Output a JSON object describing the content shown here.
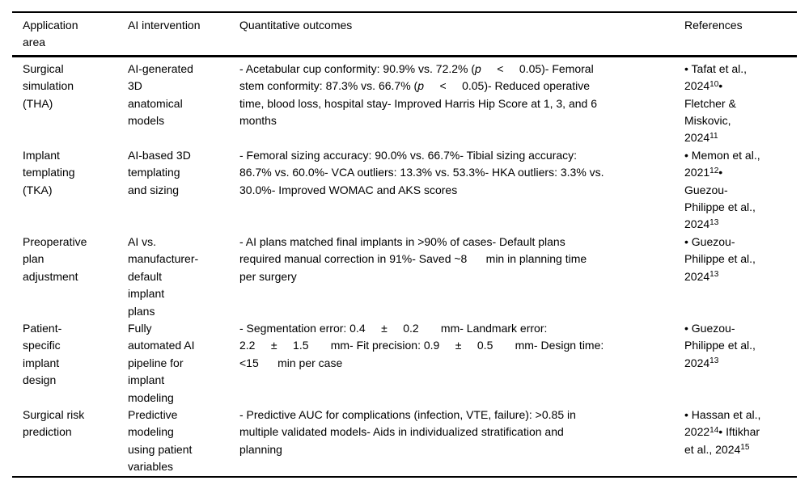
{
  "colors": {
    "text": "#000000",
    "rule": "#000000",
    "background": "#ffffff"
  },
  "table": {
    "headers": {
      "application_area": "Application\narea",
      "ai_intervention": "AI intervention",
      "quantitative_outcomes": "Quantitative outcomes",
      "references": "References"
    },
    "rows": [
      {
        "area": "Surgical\nsimulation\n(THA)",
        "intervention": "AI-generated\n3D\nanatomical\nmodels",
        "outcomes": [
          {
            "t": "- Acetabular cup conformity: 90.9% vs. 72.2% ("
          },
          {
            "t": "p",
            "s": "i"
          },
          {
            "t": "     <     0.05)- Femoral\nstem conformity: 87.3% vs. 66.7% ("
          },
          {
            "t": "p",
            "s": "i"
          },
          {
            "t": "     <     0.05)- Reduced operative\ntime, blood loss, hospital stay- Improved Harris Hip Score at 1, 3, and 6\nmonths"
          }
        ],
        "references": [
          {
            "t": "• Tafat et al.,\n2024"
          },
          {
            "t": "10",
            "s": "sup"
          },
          {
            "t": "•\nFletcher &\nMiskovic,\n2024"
          },
          {
            "t": "11",
            "s": "sup"
          }
        ]
      },
      {
        "area": "Implant\ntemplating\n(TKA)",
        "intervention": "AI-based 3D\ntemplating\nand sizing",
        "outcomes": [
          {
            "t": "- Femoral sizing accuracy: 90.0% vs. 66.7%- Tibial sizing accuracy:\n86.7% vs. 60.0%- VCA outliers: 13.3% vs. 53.3%- HKA outliers: 3.3% vs.\n30.0%- Improved WOMAC and AKS scores"
          }
        ],
        "references": [
          {
            "t": "• Memon et al.,\n2021"
          },
          {
            "t": "12",
            "s": "sup"
          },
          {
            "t": "•\nGuezou-\nPhilippe et al.,\n2024"
          },
          {
            "t": "13",
            "s": "sup"
          }
        ]
      },
      {
        "area": "Preoperative\nplan\nadjustment",
        "intervention": "AI vs.\nmanufacturer-\ndefault\nimplant\nplans",
        "outcomes": [
          {
            "t": "- AI plans matched final implants in >90% of cases- Default plans\nrequired manual correction in 91%- Saved ~8      min in planning time\nper surgery"
          }
        ],
        "references": [
          {
            "t": "• Guezou-\nPhilippe et al.,\n2024"
          },
          {
            "t": "13",
            "s": "sup"
          }
        ]
      },
      {
        "area": "Patient-\nspecific\nimplant\ndesign",
        "intervention": "Fully\nautomated AI\npipeline for\nimplant\nmodeling",
        "outcomes": [
          {
            "t": "- Segmentation error: 0.4     ±     0.2       mm- Landmark error:\n2.2     ±     1.5       mm- Fit precision: 0.9     ±     0.5       mm- Design time:\n<15      min per case"
          }
        ],
        "references": [
          {
            "t": "• Guezou-\nPhilippe et al.,\n2024"
          },
          {
            "t": "13",
            "s": "sup"
          }
        ]
      },
      {
        "area": "Surgical risk\nprediction",
        "intervention": "Predictive\nmodeling\nusing patient\nvariables",
        "outcomes": [
          {
            "t": "- Predictive AUC for complications (infection, VTE, failure): >0.85 in\nmultiple validated models- Aids in individualized stratification and\nplanning"
          }
        ],
        "references": [
          {
            "t": "• Hassan et al.,\n2022"
          },
          {
            "t": "14",
            "s": "sup"
          },
          {
            "t": "• Iftikhar\net al., 2024"
          },
          {
            "t": "15",
            "s": "sup"
          }
        ]
      }
    ]
  }
}
